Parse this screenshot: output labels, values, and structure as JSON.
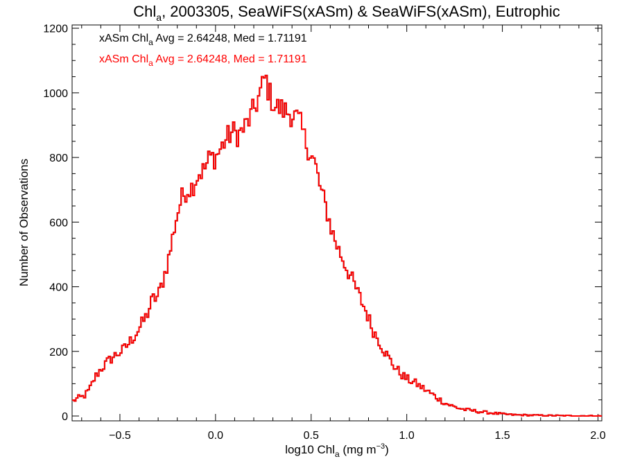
{
  "chart_data": {
    "type": "histogram",
    "title": {
      "prefix": "Chl",
      "sub": "a",
      "suffix": ", 2003305, SeaWiFS(xASm) & SeaWiFS(xASm), Eutrophic"
    },
    "xlabel": {
      "prefix": "log10 Chl",
      "sub": "a",
      "mid": " (mg m",
      "sup": "−3",
      "suffix": ")"
    },
    "ylabel": "Number of Observations",
    "xlim": [
      -0.75,
      2.02
    ],
    "ylim": [
      -15,
      1210
    ],
    "x_ticks": [
      -0.5,
      0.0,
      0.5,
      1.0,
      1.5,
      2.0
    ],
    "x_tick_labels": [
      "−0.5",
      "0.0",
      "0.5",
      "1.0",
      "1.5",
      "2.0"
    ],
    "y_ticks": [
      0,
      200,
      400,
      600,
      800,
      1000,
      1200
    ],
    "y_tick_labels": [
      "0",
      "200",
      "400",
      "600",
      "800",
      "1000",
      "1200"
    ],
    "x_minor_step": 0.1,
    "y_minor_step": 50,
    "bin_width": 0.01,
    "bin_start": -0.75,
    "legend": [
      {
        "name_prefix": "xASm Chl",
        "name_sub": "a",
        "text": " Avg = 2.64248, Med = 1.71191",
        "color": "#000000"
      },
      {
        "name_prefix": "xASm Chl",
        "name_sub": "a",
        "text": " Avg = 2.64248, Med = 1.71191",
        "color": "#ff0000"
      }
    ],
    "series": [
      {
        "name": "xASm Chl a",
        "color": "#ff0000",
        "keypoints": [
          [
            -0.75,
            45
          ],
          [
            -0.72,
            55
          ],
          [
            -0.69,
            60
          ],
          [
            -0.66,
            80
          ],
          [
            -0.63,
            120
          ],
          [
            -0.6,
            145
          ],
          [
            -0.56,
            170
          ],
          [
            -0.52,
            190
          ],
          [
            -0.48,
            205
          ],
          [
            -0.44,
            235
          ],
          [
            -0.4,
            270
          ],
          [
            -0.36,
            310
          ],
          [
            -0.33,
            360
          ],
          [
            -0.3,
            370
          ],
          [
            -0.27,
            430
          ],
          [
            -0.24,
            500
          ],
          [
            -0.21,
            600
          ],
          [
            -0.18,
            670
          ],
          [
            -0.15,
            700
          ],
          [
            -0.12,
            710
          ],
          [
            -0.09,
            750
          ],
          [
            -0.06,
            760
          ],
          [
            -0.03,
            800
          ],
          [
            0.0,
            800
          ],
          [
            0.03,
            830
          ],
          [
            0.06,
            860
          ],
          [
            0.09,
            880
          ],
          [
            0.12,
            870
          ],
          [
            0.15,
            890
          ],
          [
            0.18,
            920
          ],
          [
            0.21,
            960
          ],
          [
            0.24,
            1010
          ],
          [
            0.26,
            1050
          ],
          [
            0.28,
            1000
          ],
          [
            0.31,
            960
          ],
          [
            0.34,
            950
          ],
          [
            0.38,
            940
          ],
          [
            0.41,
            930
          ],
          [
            0.44,
            910
          ],
          [
            0.47,
            850
          ],
          [
            0.5,
            810
          ],
          [
            0.52,
            780
          ],
          [
            0.55,
            700
          ],
          [
            0.58,
            640
          ],
          [
            0.61,
            570
          ],
          [
            0.64,
            520
          ],
          [
            0.67,
            480
          ],
          [
            0.7,
            440
          ],
          [
            0.73,
            400
          ],
          [
            0.76,
            360
          ],
          [
            0.79,
            320
          ],
          [
            0.82,
            270
          ],
          [
            0.85,
            240
          ],
          [
            0.88,
            205
          ],
          [
            0.91,
            175
          ],
          [
            0.94,
            150
          ],
          [
            0.97,
            130
          ],
          [
            1.0,
            115
          ],
          [
            1.05,
            100
          ],
          [
            1.1,
            80
          ],
          [
            1.15,
            60
          ],
          [
            1.2,
            40
          ],
          [
            1.25,
            28
          ],
          [
            1.3,
            20
          ],
          [
            1.35,
            16
          ],
          [
            1.4,
            12
          ],
          [
            1.45,
            9
          ],
          [
            1.5,
            6
          ],
          [
            1.55,
            4
          ],
          [
            1.6,
            3
          ],
          [
            1.7,
            2
          ],
          [
            1.8,
            1
          ],
          [
            2.02,
            0
          ]
        ]
      }
    ]
  }
}
